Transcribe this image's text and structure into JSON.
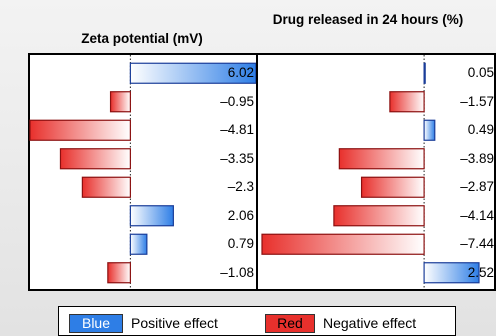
{
  "legend": {
    "blue_label": "Blue",
    "positive_label": "Positive effect",
    "red_label": "Red",
    "negative_label": "Negative effect"
  },
  "colors": {
    "positive": "#2e7ee6",
    "negative": "#e8302c"
  },
  "chart_data": [
    {
      "type": "bar",
      "orientation": "horizontal",
      "title": "Zeta potential (mV)",
      "values": [
        6.02,
        -0.95,
        -4.81,
        -3.35,
        -2.3,
        2.06,
        0.79,
        -1.08
      ],
      "labels": [
        "6.02",
        "–0.95",
        "–4.81",
        "–3.35",
        "–2.3",
        "2.06",
        "0.79",
        "–1.08"
      ],
      "xlim": [
        -4.81,
        6.02
      ]
    },
    {
      "type": "bar",
      "orientation": "horizontal",
      "title": "Drug released in 24 hours (%)",
      "values": [
        0.05,
        -1.57,
        0.49,
        -3.89,
        -2.87,
        -4.14,
        -7.44,
        2.52
      ],
      "labels": [
        "0.05",
        "–1.57",
        "0.49",
        "–3.89",
        "–2.87",
        "–4.14",
        "–7.44",
        "2.52"
      ],
      "xlim": [
        -7.44,
        2.52
      ]
    }
  ]
}
